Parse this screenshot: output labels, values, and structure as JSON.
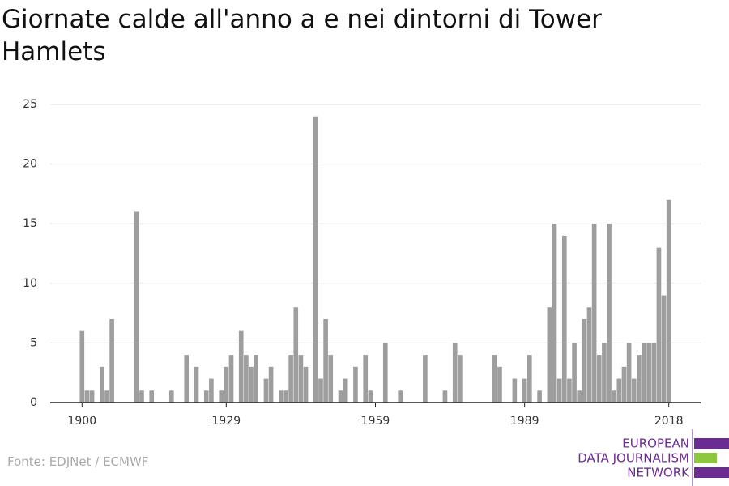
{
  "chart_data": {
    "type": "bar",
    "title": "Giornate calde all'anno a e nei dintorni di Tower Hamlets",
    "x": [
      1900,
      1901,
      1902,
      1904,
      1905,
      1906,
      1911,
      1912,
      1914,
      1918,
      1921,
      1923,
      1925,
      1926,
      1928,
      1929,
      1930,
      1932,
      1933,
      1934,
      1935,
      1937,
      1938,
      1940,
      1941,
      1942,
      1943,
      1944,
      1945,
      1947,
      1948,
      1949,
      1950,
      1952,
      1953,
      1955,
      1957,
      1958,
      1961,
      1964,
      1969,
      1973,
      1975,
      1976,
      1983,
      1984,
      1987,
      1989,
      1990,
      1992,
      1994,
      1995,
      1996,
      1997,
      1998,
      1999,
      2000,
      2001,
      2002,
      2003,
      2004,
      2005,
      2006,
      2007,
      2008,
      2009,
      2010,
      2011,
      2012,
      2013,
      2014,
      2015,
      2016,
      2017,
      2018
    ],
    "values": [
      6,
      1,
      1,
      3,
      1,
      7,
      16,
      1,
      1,
      1,
      4,
      3,
      1,
      2,
      1,
      3,
      4,
      6,
      4,
      3,
      4,
      2,
      3,
      1,
      1,
      4,
      8,
      4,
      3,
      24,
      2,
      7,
      4,
      1,
      2,
      3,
      4,
      1,
      5,
      1,
      4,
      1,
      5,
      4,
      4,
      3,
      2,
      2,
      4,
      1,
      8,
      15,
      2,
      14,
      2,
      5,
      1,
      7,
      8,
      15,
      4,
      5,
      15,
      1,
      2,
      3,
      5,
      2,
      4,
      5,
      5,
      5,
      13,
      9,
      17
    ],
    "color": "#9e9e9e",
    "xlim": [
      1893.6,
      2024.4
    ],
    "xticks": [
      1900,
      1929,
      1959,
      1989,
      2018
    ],
    "ylim": [
      0,
      25
    ],
    "yticks": [
      0,
      5,
      10,
      15,
      20,
      25
    ],
    "grid": true
  },
  "source": "Fonte: EDJNet / ECMWF",
  "logo": [
    "EUROPEAN",
    "DATA JOURNALISM",
    "NETWORK"
  ]
}
